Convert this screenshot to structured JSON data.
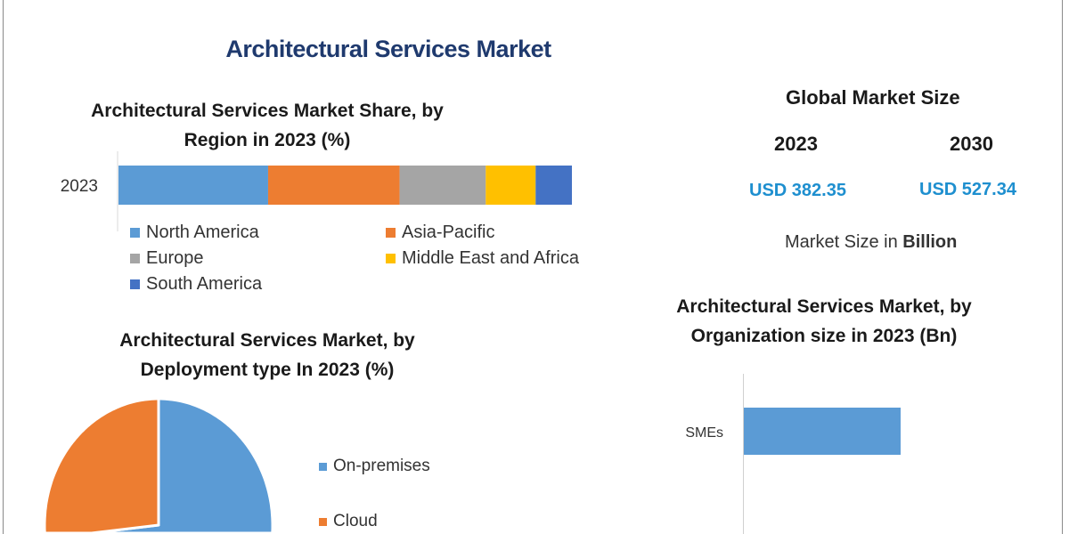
{
  "title": "Architectural Services Market",
  "market_size": {
    "heading": "Global Market Size",
    "years": [
      "2023",
      "2030"
    ],
    "values": [
      "USD 382.35",
      "USD 527.34"
    ],
    "note_prefix": "Market Size in ",
    "note_unit": "Billion"
  },
  "chart_data": [
    {
      "type": "bar",
      "orientation": "horizontal-stacked",
      "title": "Architectural Services Market Share, by Region in 2023 (%)",
      "title_lines": [
        "Architectural Services Market Share, by",
        "Region in 2023 (%)"
      ],
      "categories": [
        "2023"
      ],
      "xlim": [
        0,
        100
      ],
      "legend_position": "bottom",
      "series": [
        {
          "name": "North America",
          "values": [
            33
          ],
          "color": "#5b9bd5"
        },
        {
          "name": "Asia-Pacific",
          "values": [
            29
          ],
          "color": "#ed7d31"
        },
        {
          "name": "Europe",
          "values": [
            19
          ],
          "color": "#a5a5a5"
        },
        {
          "name": "Middle East and Africa",
          "values": [
            11
          ],
          "color": "#ffc000"
        },
        {
          "name": "South America",
          "values": [
            8
          ],
          "color": "#4472c4"
        }
      ]
    },
    {
      "type": "pie",
      "title": "Architectural Services Market, by Deployment type In 2023 (%)",
      "title_lines": [
        "Architectural Services Market, by",
        "Deployment type In 2023 (%)"
      ],
      "legend_position": "right",
      "slices": [
        {
          "name": "On-premises",
          "value": 60,
          "color": "#5b9bd5"
        },
        {
          "name": "Cloud",
          "value": 40,
          "color": "#ed7d31"
        }
      ]
    },
    {
      "type": "bar",
      "orientation": "horizontal",
      "title": "Architectural Services Market, by Organization size in 2023 (Bn)",
      "title_lines": [
        "Architectural Services Market, by",
        "Organization size in 2023 (Bn)"
      ],
      "categories": [
        "SMEs"
      ],
      "values": [
        1
      ],
      "xlim": [
        0,
        2.04
      ],
      "color": "#5b9bd5"
    }
  ]
}
